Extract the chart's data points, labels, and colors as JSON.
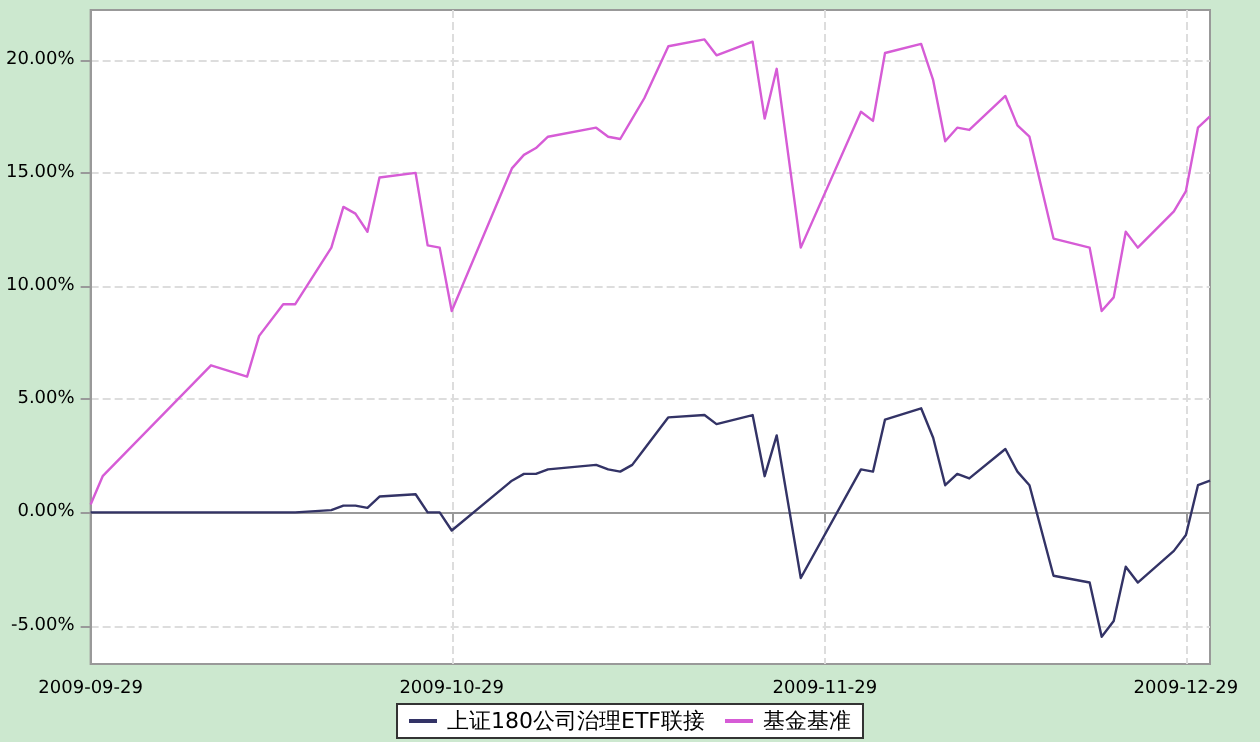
{
  "chart_data": {
    "type": "line",
    "x": [
      "2009-09-29",
      "2009-09-30",
      "2009-10-09",
      "2009-10-12",
      "2009-10-13",
      "2009-10-15",
      "2009-10-16",
      "2009-10-19",
      "2009-10-20",
      "2009-10-21",
      "2009-10-22",
      "2009-10-23",
      "2009-10-26",
      "2009-10-27",
      "2009-10-28",
      "2009-10-29",
      "2009-11-03",
      "2009-11-04",
      "2009-11-05",
      "2009-11-06",
      "2009-11-10",
      "2009-11-11",
      "2009-11-12",
      "2009-11-13",
      "2009-11-14",
      "2009-11-16",
      "2009-11-19",
      "2009-11-20",
      "2009-11-23",
      "2009-11-24",
      "2009-11-25",
      "2009-11-27",
      "2009-12-02",
      "2009-12-03",
      "2009-12-04",
      "2009-12-07",
      "2009-12-08",
      "2009-12-09",
      "2009-12-10",
      "2009-12-11",
      "2009-12-14",
      "2009-12-15",
      "2009-12-16",
      "2009-12-18",
      "2009-12-21",
      "2009-12-22",
      "2009-12-23",
      "2009-12-24",
      "2009-12-25",
      "2009-12-28",
      "2009-12-29",
      "2009-12-30",
      "2009-12-31"
    ],
    "series": [
      {
        "name": "上证180公司治理ETF联接",
        "color": "#333366",
        "values": [
          0,
          0,
          0,
          0,
          0,
          0,
          0,
          0.1,
          0.3,
          0.3,
          0.2,
          0.7,
          0.8,
          0,
          0,
          -0.8,
          1.4,
          1.7,
          1.7,
          1.9,
          2.1,
          1.9,
          1.8,
          2.1,
          2.8,
          4.2,
          4.3,
          3.9,
          4.3,
          1.6,
          3.4,
          -2.9,
          1.9,
          1.8,
          4.1,
          4.6,
          3.3,
          1.2,
          1.7,
          1.5,
          2.8,
          1.8,
          1.2,
          -2.8,
          -3.1,
          -5.5,
          -4.8,
          -2.4,
          -3.1,
          -1.7,
          -1.0,
          1.2,
          1.4
        ]
      },
      {
        "name": "基金基准",
        "color": "#d65cd6",
        "values": [
          0.35,
          1.6,
          6.5,
          6.0,
          7.8,
          9.2,
          9.2,
          11.7,
          13.5,
          13.2,
          12.4,
          14.8,
          15.0,
          11.8,
          11.7,
          8.9,
          15.2,
          15.8,
          16.1,
          16.6,
          17.0,
          16.6,
          16.5,
          17.4,
          18.3,
          20.6,
          20.9,
          20.2,
          20.8,
          17.4,
          19.6,
          11.7,
          17.7,
          17.3,
          20.3,
          20.7,
          19.1,
          16.4,
          17.0,
          16.9,
          18.4,
          17.1,
          16.6,
          12.1,
          11.7,
          8.9,
          9.5,
          12.4,
          11.7,
          13.3,
          14.2,
          17.0,
          17.5
        ]
      }
    ],
    "xlim": [
      "2009-09-29",
      "2009-12-31"
    ],
    "xticks": [
      "2009-09-29",
      "2009-10-29",
      "2009-11-29",
      "2009-12-29"
    ],
    "ylim": [
      -6.7,
      22.2
    ],
    "yticks": [
      {
        "value": -5,
        "label": "-5.00%"
      },
      {
        "value": 0,
        "label": "0.00%"
      },
      {
        "value": 5,
        "label": "5.00%"
      },
      {
        "value": 10,
        "label": "10.00%"
      },
      {
        "value": 15,
        "label": "15.00%"
      },
      {
        "value": 20,
        "label": "20.00%"
      }
    ],
    "grid": true,
    "legend": "bottom",
    "line_style": "solid"
  }
}
